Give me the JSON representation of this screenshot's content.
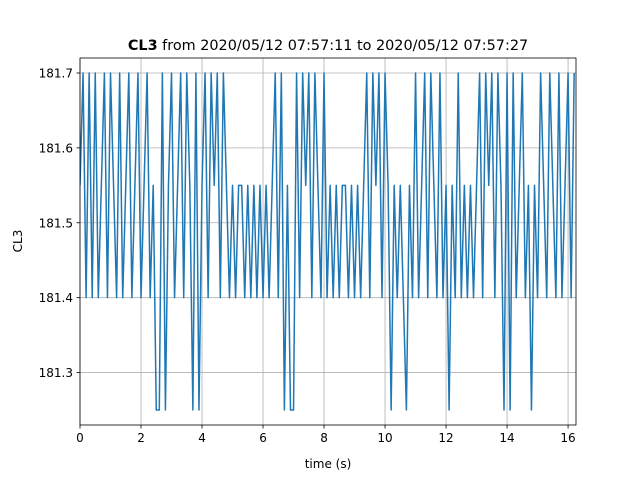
{
  "chart_data": {
    "type": "line",
    "title_name": "CL3",
    "title_rest": "from 2020/05/12 07:57:11 to 2020/05/12 07:57:27",
    "xlabel": "time (s)",
    "ylabel": "CL3",
    "xlim": [
      0,
      16.26
    ],
    "ylim": [
      181.23,
      181.72
    ],
    "xticks": [
      0,
      2,
      4,
      6,
      8,
      10,
      12,
      14,
      16
    ],
    "yticks": [
      181.3,
      181.4,
      181.5,
      181.6,
      181.7
    ],
    "grid": true,
    "x": [
      0,
      0.1,
      0.2,
      0.3,
      0.4,
      0.5,
      0.6,
      0.7,
      0.8,
      0.9,
      1.0,
      1.1,
      1.2,
      1.3,
      1.4,
      1.5,
      1.6,
      1.7,
      1.8,
      1.9,
      2.0,
      2.1,
      2.2,
      2.3,
      2.4,
      2.5,
      2.6,
      2.7,
      2.8,
      2.9,
      3.0,
      3.1,
      3.2,
      3.3,
      3.4,
      3.5,
      3.6,
      3.7,
      3.8,
      3.9,
      4.0,
      4.1,
      4.2,
      4.3,
      4.4,
      4.5,
      4.6,
      4.7,
      4.8,
      4.9,
      5.0,
      5.1,
      5.2,
      5.3,
      5.4,
      5.5,
      5.6,
      5.7,
      5.8,
      5.9,
      6.0,
      6.1,
      6.2,
      6.3,
      6.4,
      6.5,
      6.6,
      6.7,
      6.8,
      6.9,
      7.0,
      7.1,
      7.2,
      7.3,
      7.4,
      7.5,
      7.6,
      7.7,
      7.8,
      7.9,
      8.0,
      8.1,
      8.2,
      8.3,
      8.4,
      8.5,
      8.6,
      8.7,
      8.8,
      8.9,
      9.0,
      9.1,
      9.2,
      9.3,
      9.4,
      9.5,
      9.6,
      9.7,
      9.8,
      9.9,
      10.0,
      10.1,
      10.2,
      10.3,
      10.4,
      10.5,
      10.6,
      10.7,
      10.8,
      10.9,
      11.0,
      11.1,
      11.2,
      11.3,
      11.4,
      11.5,
      11.6,
      11.7,
      11.8,
      11.9,
      12.0,
      12.1,
      12.2,
      12.3,
      12.4,
      12.5,
      12.6,
      12.7,
      12.8,
      12.9,
      13.0,
      13.1,
      13.2,
      13.3,
      13.4,
      13.5,
      13.6,
      13.7,
      13.8,
      13.9,
      14.0,
      14.1,
      14.2,
      14.3,
      14.4,
      14.5,
      14.6,
      14.7,
      14.8,
      14.9,
      15.0,
      15.1,
      15.2,
      15.3,
      15.4,
      15.5,
      15.6,
      15.7,
      15.8,
      15.9,
      16.0,
      16.1,
      16.2
    ],
    "series": [
      {
        "name": "CL3",
        "color": "#1f77b4",
        "values": [
          181.55,
          181.7,
          181.4,
          181.7,
          181.4,
          181.7,
          181.4,
          181.55,
          181.7,
          181.4,
          181.7,
          181.55,
          181.4,
          181.7,
          181.4,
          181.55,
          181.7,
          181.4,
          181.55,
          181.7,
          181.4,
          181.55,
          181.7,
          181.4,
          181.55,
          181.25,
          181.25,
          181.7,
          181.25,
          181.55,
          181.7,
          181.4,
          181.55,
          181.7,
          181.4,
          181.7,
          181.55,
          181.25,
          181.7,
          181.25,
          181.55,
          181.7,
          181.4,
          181.7,
          181.55,
          181.7,
          181.4,
          181.7,
          181.55,
          181.4,
          181.55,
          181.4,
          181.55,
          181.55,
          181.4,
          181.55,
          181.4,
          181.55,
          181.4,
          181.55,
          181.4,
          181.55,
          181.4,
          181.55,
          181.7,
          181.4,
          181.7,
          181.25,
          181.55,
          181.25,
          181.25,
          181.7,
          181.4,
          181.7,
          181.55,
          181.7,
          181.4,
          181.7,
          181.55,
          181.4,
          181.7,
          181.4,
          181.55,
          181.4,
          181.55,
          181.4,
          181.55,
          181.55,
          181.4,
          181.55,
          181.4,
          181.55,
          181.4,
          181.55,
          181.7,
          181.4,
          181.7,
          181.55,
          181.7,
          181.4,
          181.7,
          181.55,
          181.25,
          181.55,
          181.4,
          181.55,
          181.4,
          181.25,
          181.55,
          181.4,
          181.7,
          181.4,
          181.55,
          181.7,
          181.4,
          181.7,
          181.55,
          181.4,
          181.7,
          181.4,
          181.55,
          181.25,
          181.55,
          181.4,
          181.7,
          181.4,
          181.55,
          181.4,
          181.55,
          181.4,
          181.55,
          181.7,
          181.4,
          181.7,
          181.55,
          181.7,
          181.4,
          181.7,
          181.55,
          181.25,
          181.7,
          181.25,
          181.7,
          181.4,
          181.55,
          181.7,
          181.4,
          181.55,
          181.25,
          181.55,
          181.4,
          181.7,
          181.55,
          181.4,
          181.7,
          181.55,
          181.4,
          181.7,
          181.4,
          181.55,
          181.7,
          181.4,
          181.7
        ]
      }
    ]
  }
}
